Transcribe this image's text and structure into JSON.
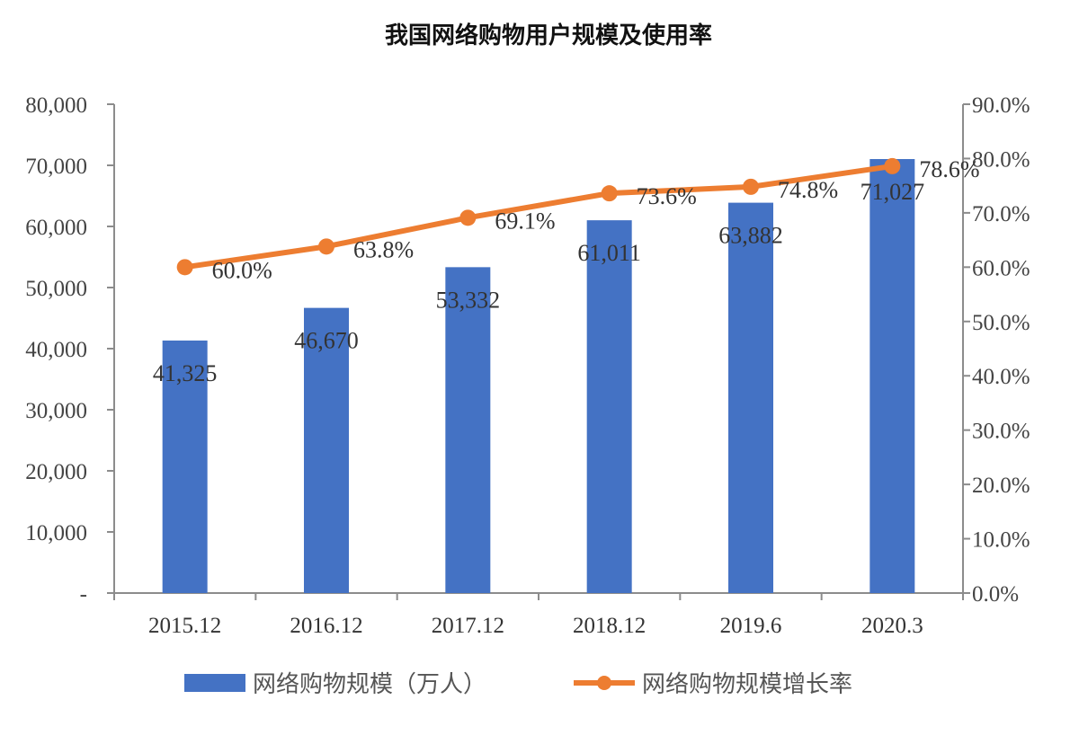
{
  "chart_data": {
    "type": "bar",
    "title": "我国网络购物用户规模及使用率",
    "categories": [
      "2015.12",
      "2016.12",
      "2017.12",
      "2018.12",
      "2019.6",
      "2020.3"
    ],
    "series": [
      {
        "name": "网络购物规模（万人）",
        "type": "bar",
        "axis": "left",
        "color": "#4472C4",
        "values": [
          41325,
          46670,
          53332,
          61011,
          63882,
          71027
        ],
        "labels": [
          "41,325",
          "46,670",
          "53,332",
          "61,011",
          "63,882",
          "71,027"
        ]
      },
      {
        "name": "网络购物规模增长率",
        "type": "line",
        "axis": "right",
        "color": "#ED7D31",
        "values": [
          60.0,
          63.8,
          69.1,
          73.6,
          74.8,
          78.6
        ],
        "labels": [
          "60.0%",
          "63.8%",
          "69.1%",
          "73.6%",
          "74.8%",
          "78.6%"
        ]
      }
    ],
    "y_left": {
      "ylim": [
        0,
        80000
      ],
      "ticks": [
        "-",
        "10,000",
        "20,000",
        "30,000",
        "40,000",
        "50,000",
        "60,000",
        "70,000",
        "80,000"
      ]
    },
    "y_right": {
      "ylim": [
        0,
        90
      ],
      "ticks": [
        "0.0%",
        "10.0%",
        "20.0%",
        "30.0%",
        "40.0%",
        "50.0%",
        "60.0%",
        "70.0%",
        "80.0%",
        "90.0%"
      ]
    },
    "grid": false,
    "legend_position": "bottom"
  }
}
